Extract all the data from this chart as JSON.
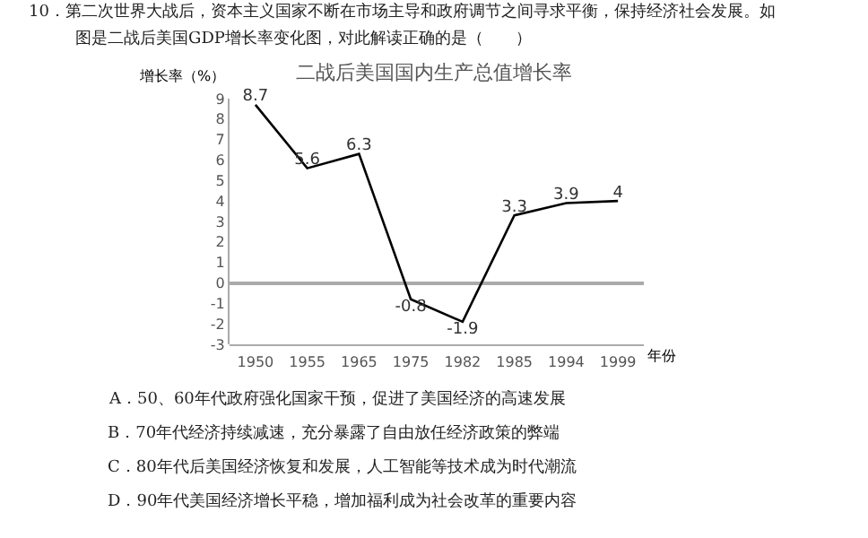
{
  "chart_data": {
    "type": "line",
    "title": "二战后美国国内生产总值增长率",
    "xlabel": "年份",
    "ylabel": "增长率（%）",
    "categories": [
      "1950",
      "1955",
      "1965",
      "1975",
      "1982",
      "1985",
      "1994",
      "1999"
    ],
    "series": [
      {
        "color": "#000000",
        "values": [
          8.7,
          5.6,
          6.3,
          -0.8,
          -1.9,
          3.3,
          3.9,
          4
        ]
      }
    ],
    "ylim": [
      -3,
      9
    ],
    "yticks": [
      -3,
      -2,
      -1,
      0,
      1,
      2,
      3,
      4,
      5,
      6,
      7,
      8,
      9
    ],
    "data_labels": true,
    "marker": "none",
    "line_style": "solid",
    "annotations": [
      "10．第二次世界大战后，资本主义国家不断在市场主导和政府调节之间寻求平衡，保持经济社会发展。如",
      "图是二战后美国GDP增长率变化图，对此解读正确的是（　　）",
      "A．50、60年代政府强化国家干预，促进了美国经济的高速发展",
      "B．70年代经济持续减速，充分暴露了自由放任经济政策的弊端",
      "C．80年代后美国经济恢复和发展，人工智能等技术成为时代潮流",
      "D．90年代美国经济增长平稳，增加福利成为社会改革的重要内容"
    ]
  }
}
